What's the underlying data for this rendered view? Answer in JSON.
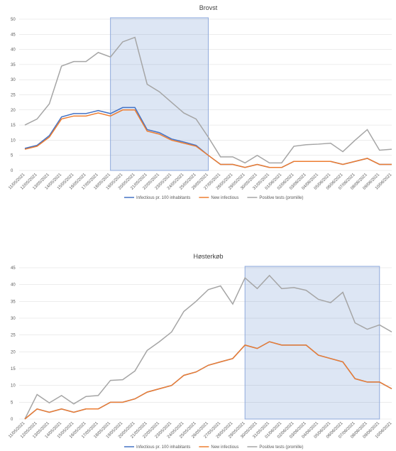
{
  "chart_data": [
    {
      "type": "line",
      "title": "Brovst",
      "categories": [
        "11/05/2021",
        "12/05/2021",
        "13/05/2021",
        "14/05/2021",
        "15/05/2021",
        "16/05/2021",
        "17/05/2021",
        "18/05/2021",
        "19/05/2021",
        "20/05/2021",
        "21/05/2021",
        "22/05/2021",
        "23/05/2021",
        "24/05/2021",
        "25/05/2021",
        "26/05/2021",
        "27/05/2021",
        "28/05/2021",
        "29/05/2021",
        "30/05/2021",
        "31/05/2021",
        "01/06/2021",
        "02/06/2021",
        "03/06/2021",
        "04/06/2021",
        "05/06/2021",
        "06/06/2021",
        "07/06/2021",
        "08/06/2021",
        "09/06/2021",
        "10/06/2021"
      ],
      "series": [
        {
          "name": "Infectious pr. 100 inhabitants",
          "color": "#4472c4",
          "values": [
            7.3,
            8.3,
            11.5,
            17.7,
            18.8,
            18.8,
            19.8,
            18.8,
            20.8,
            20.8,
            13.5,
            12.5,
            10.4,
            9.4,
            8.3,
            5,
            2,
            2,
            1,
            2,
            1,
            1,
            3,
            3,
            3,
            3,
            2,
            3,
            4,
            2,
            2
          ]
        },
        {
          "name": "New infectious",
          "color": "#ed7d31",
          "values": [
            7,
            8,
            11,
            17,
            18,
            18,
            19,
            18,
            20,
            20,
            13,
            12,
            10,
            9,
            8,
            5,
            2,
            2,
            1,
            2,
            1,
            1,
            3,
            3,
            3,
            3,
            2,
            3,
            4,
            2,
            2
          ]
        },
        {
          "name": "Positive tests (promille)",
          "color": "#a5a5a5",
          "values": [
            15,
            17,
            22,
            34.5,
            36,
            36,
            39,
            37.5,
            42.5,
            44,
            28.5,
            26,
            22.5,
            19,
            17,
            11,
            4.5,
            4.5,
            2.5,
            5,
            2.5,
            2.5,
            8,
            8.5,
            8.7,
            9,
            6.2,
            10,
            13.5,
            6.7,
            7
          ]
        }
      ],
      "highlight": [
        "18/05/2021",
        "26/05/2021"
      ],
      "ylim": [
        0,
        50
      ],
      "yticks": [
        0,
        5,
        10,
        15,
        20,
        25,
        30,
        35,
        40,
        45,
        50
      ],
      "grid": true,
      "legend": "bottom"
    },
    {
      "type": "line",
      "title": "Høsterkøb",
      "categories": [
        "11/05/2021",
        "12/05/2021",
        "13/05/2021",
        "14/05/2021",
        "15/05/2021",
        "16/05/2021",
        "17/05/2021",
        "18/05/2021",
        "19/05/2021",
        "20/05/2021",
        "21/05/2021",
        "22/05/2021",
        "23/05/2021",
        "24/05/2021",
        "25/05/2021",
        "26/05/2021",
        "27/05/2021",
        "28/05/2021",
        "29/05/2021",
        "30/05/2021",
        "31/05/2021",
        "01/06/2021",
        "02/06/2021",
        "03/06/2021",
        "04/06/2021",
        "05/06/2021",
        "06/06/2021",
        "07/06/2021",
        "08/06/2021",
        "09/06/2021",
        "10/06/2021"
      ],
      "series": [
        {
          "name": "Infectious pr. 100 inhabitants",
          "color": "#4472c4",
          "values": [
            0,
            3,
            2,
            3,
            2,
            3,
            3,
            5,
            5,
            6,
            8,
            9,
            10,
            13,
            14,
            16,
            17,
            18,
            22,
            21,
            23,
            22,
            22,
            22,
            19,
            18,
            17,
            12,
            11,
            11,
            9
          ]
        },
        {
          "name": "New infectious",
          "color": "#ed7d31",
          "values": [
            0,
            3,
            2,
            3,
            2,
            3,
            3,
            5,
            5,
            6,
            8,
            9,
            10,
            13,
            14,
            16,
            17,
            18,
            22,
            21,
            23,
            22,
            22,
            22,
            19,
            18,
            17,
            12,
            11,
            11,
            9
          ]
        },
        {
          "name": "Positive tests (promille)",
          "color": "#a5a5a5",
          "values": [
            0,
            7.3,
            4.8,
            7,
            4.5,
            6.7,
            7,
            11.5,
            11.7,
            14.3,
            20.4,
            23,
            25.9,
            32,
            35,
            38.5,
            39.6,
            34.2,
            42,
            38.8,
            42.7,
            38.8,
            39.1,
            38.3,
            35.6,
            34.6,
            37.7,
            28.6,
            26.7,
            28,
            25.9
          ]
        }
      ],
      "highlight": [
        "29/05/2021",
        "09/06/2021"
      ],
      "ylim": [
        0,
        45
      ],
      "yticks": [
        0,
        5,
        10,
        15,
        20,
        25,
        30,
        35,
        40,
        45
      ],
      "grid": true,
      "legend": "bottom"
    }
  ]
}
